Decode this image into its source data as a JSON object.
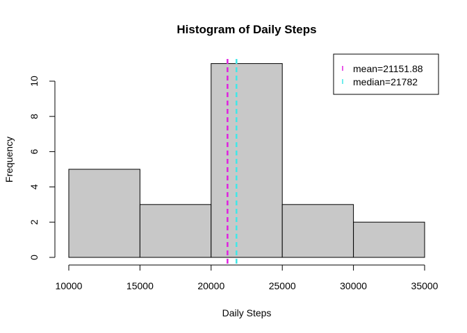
{
  "chart_data": {
    "type": "bar",
    "subtype": "histogram",
    "title": "Histogram of Daily Steps",
    "xlabel": "Daily Steps",
    "ylabel": "Frequency",
    "bins": [
      {
        "from": 10000,
        "to": 15000,
        "count": 5
      },
      {
        "from": 15000,
        "to": 20000,
        "count": 3
      },
      {
        "from": 20000,
        "to": 25000,
        "count": 11
      },
      {
        "from": 25000,
        "to": 30000,
        "count": 3
      },
      {
        "from": 30000,
        "to": 35000,
        "count": 2
      }
    ],
    "xlim": [
      10000,
      35000
    ],
    "ylim": [
      0,
      11
    ],
    "x_ticks": [
      10000,
      15000,
      20000,
      25000,
      30000,
      35000
    ],
    "y_ticks": [
      0,
      2,
      4,
      6,
      8,
      10
    ],
    "bar_color": "#c8c8c8",
    "grid": false,
    "legend_position": "top-right",
    "reference_lines": [
      {
        "name": "mean=21151.88",
        "value": 21151.88,
        "color": "#e020e0",
        "style": "dashed"
      },
      {
        "name": "median=21782",
        "value": 21782,
        "color": "#40e8e8",
        "style": "dashed"
      }
    ]
  }
}
